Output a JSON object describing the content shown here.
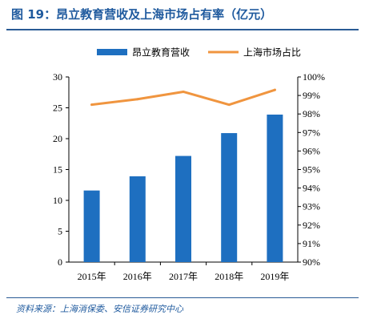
{
  "figure": {
    "title": "图 19：昂立教育营收及上海市场占有率（亿元）",
    "source": "资料来源：上海消保委、安信证券研究中心"
  },
  "colors": {
    "bar": "#1e6fc0",
    "line": "#f0953f",
    "title": "#1f5a9e",
    "axis": "#000000"
  },
  "chart_data": {
    "type": "bar",
    "categories": [
      "2015年",
      "2016年",
      "2017年",
      "2018年",
      "2019年"
    ],
    "series": [
      {
        "name": "昂立教育营收",
        "type": "bar",
        "axis": "left",
        "values": [
          11.6,
          13.9,
          17.2,
          20.9,
          23.9
        ]
      },
      {
        "name": "上海市场占比",
        "type": "line",
        "axis": "right",
        "values": [
          98.5,
          98.8,
          99.2,
          98.5,
          99.3
        ]
      }
    ],
    "y_left": {
      "range": [
        0,
        30
      ],
      "ticks": [
        "0",
        "5",
        "10",
        "15",
        "20",
        "25",
        "30"
      ]
    },
    "y_right": {
      "range": [
        90,
        100
      ],
      "ticks": [
        "90%",
        "91%",
        "92%",
        "93%",
        "94%",
        "95%",
        "96%",
        "97%",
        "98%",
        "99%",
        "100%"
      ]
    },
    "legend_position": "top-center",
    "grid": false
  }
}
